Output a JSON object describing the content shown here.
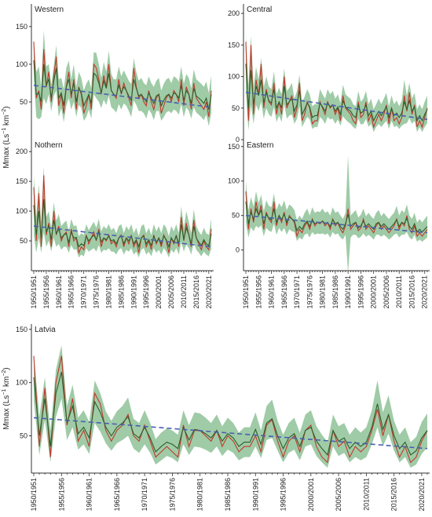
{
  "ylabel_prefix": "Mmax (Ls",
  "ylabel_exp1": "−1",
  "ylabel_mid": " km",
  "ylabel_exp2": "−2",
  "ylabel_suffix": ")",
  "colors": {
    "band": "#7fb98a",
    "line_red": "#c0392b",
    "line_green": "#2e5e2a",
    "trend": "#4a5fb0",
    "frame": "#333333"
  },
  "chart_data": [
    {
      "name": "Western",
      "type": "line",
      "years": [
        1951,
        2022
      ],
      "ylim": [
        0,
        180
      ],
      "yticks": [
        50,
        100,
        150
      ],
      "tick_labels": [
        "50",
        "100",
        "150"
      ],
      "observed": [
        130,
        55,
        65,
        40,
        120,
        70,
        90,
        50,
        85,
        110,
        45,
        60,
        35,
        70,
        90,
        55,
        80,
        40,
        70,
        60,
        35,
        45,
        60,
        40,
        100,
        95,
        80,
        60,
        85,
        70,
        100,
        65,
        60,
        55,
        80,
        60,
        75,
        65,
        55,
        45,
        95,
        70,
        55,
        60,
        50,
        45,
        65,
        50,
        40,
        55,
        60,
        35,
        45,
        55,
        60,
        50,
        65,
        60,
        50,
        80,
        45,
        70,
        60,
        40,
        75,
        55,
        50,
        45,
        40,
        50,
        30,
        65
      ],
      "modeled": [
        105,
        60,
        62,
        50,
        100,
        72,
        80,
        55,
        78,
        95,
        55,
        62,
        45,
        70,
        80,
        60,
        75,
        50,
        68,
        62,
        45,
        52,
        60,
        48,
        88,
        85,
        75,
        62,
        78,
        68,
        88,
        65,
        60,
        58,
        72,
        62,
        70,
        65,
        58,
        52,
        80,
        68,
        58,
        60,
        55,
        50,
        62,
        55,
        48,
        58,
        60,
        45,
        52,
        58,
        60,
        55,
        62,
        60,
        55,
        72,
        52,
        65,
        60,
        48,
        68,
        58,
        55,
        52,
        48,
        55,
        40,
        60
      ],
      "band_width": [
        25,
        30,
        35,
        20,
        45,
        25,
        20,
        18,
        20,
        30,
        25,
        20,
        22,
        25,
        25,
        20,
        25,
        20,
        22,
        20,
        20,
        22,
        20,
        20,
        28,
        30,
        25,
        20,
        25,
        22,
        30,
        22,
        20,
        22,
        25,
        22,
        22,
        20,
        20,
        22,
        28,
        22,
        20,
        22,
        20,
        22,
        22,
        20,
        22,
        20,
        22,
        20,
        22,
        22,
        22,
        20,
        22,
        22,
        22,
        25,
        22,
        22,
        22,
        20,
        25,
        22,
        22,
        22,
        22,
        22,
        22,
        25
      ],
      "trend": [
        72,
        43
      ]
    },
    {
      "name": "Central",
      "type": "line",
      "years": [
        1951,
        2022
      ],
      "ylim": [
        0,
        215
      ],
      "yticks": [
        0,
        50,
        100,
        150,
        200
      ],
      "tick_labels": [
        "0",
        "50",
        "100",
        "150",
        "200"
      ],
      "observed": [
        155,
        30,
        150,
        40,
        95,
        70,
        120,
        50,
        80,
        60,
        55,
        90,
        40,
        60,
        40,
        100,
        50,
        60,
        70,
        35,
        50,
        90,
        30,
        40,
        60,
        50,
        25,
        30,
        30,
        60,
        50,
        40,
        60,
        50,
        55,
        40,
        50,
        30,
        70,
        50,
        45,
        40,
        30,
        25,
        60,
        35,
        40,
        60,
        30,
        40,
        20,
        30,
        40,
        30,
        40,
        55,
        25,
        50,
        30,
        35,
        25,
        35,
        70,
        45,
        75,
        40,
        55,
        20,
        30,
        20,
        35,
        50
      ],
      "modeled": [
        120,
        50,
        110,
        55,
        85,
        70,
        95,
        58,
        75,
        62,
        58,
        80,
        50,
        60,
        50,
        85,
        55,
        60,
        65,
        45,
        55,
        78,
        40,
        48,
        58,
        52,
        35,
        38,
        38,
        58,
        52,
        45,
        58,
        52,
        55,
        45,
        52,
        40,
        62,
        52,
        48,
        45,
        38,
        35,
        55,
        42,
        45,
        55,
        38,
        45,
        30,
        38,
        45,
        38,
        45,
        52,
        35,
        50,
        38,
        42,
        35,
        42,
        60,
        48,
        62,
        45,
        52,
        30,
        38,
        30,
        40,
        48
      ],
      "band_width": [
        45,
        35,
        55,
        30,
        30,
        25,
        35,
        25,
        25,
        22,
        22,
        28,
        22,
        22,
        22,
        28,
        22,
        22,
        25,
        20,
        22,
        25,
        20,
        20,
        22,
        20,
        18,
        18,
        18,
        22,
        20,
        20,
        22,
        20,
        22,
        20,
        20,
        18,
        25,
        20,
        20,
        20,
        18,
        18,
        22,
        18,
        20,
        22,
        18,
        20,
        18,
        18,
        20,
        18,
        20,
        22,
        18,
        20,
        18,
        20,
        18,
        20,
        35,
        22,
        28,
        20,
        22,
        18,
        18,
        18,
        20,
        22
      ],
      "trend": [
        75,
        32
      ]
    },
    {
      "name": "Nothern",
      "type": "line",
      "years": [
        1951,
        2022
      ],
      "ylim": [
        0,
        220
      ],
      "yticks": [
        50,
        100,
        150,
        200
      ],
      "tick_labels": [
        "50",
        "100",
        "150",
        "200"
      ],
      "observed": [
        140,
        50,
        130,
        40,
        160,
        60,
        80,
        40,
        100,
        60,
        75,
        50,
        60,
        65,
        40,
        70,
        50,
        55,
        30,
        40,
        35,
        60,
        45,
        55,
        65,
        50,
        70,
        40,
        55,
        50,
        60,
        45,
        50,
        40,
        55,
        60,
        40,
        55,
        45,
        60,
        40,
        50,
        30,
        55,
        60,
        40,
        50,
        35,
        60,
        45,
        55,
        40,
        60,
        50,
        30,
        55,
        45,
        60,
        40,
        90,
        50,
        80,
        60,
        40,
        85,
        55,
        45,
        35,
        50,
        40,
        35,
        70
      ],
      "modeled": [
        110,
        60,
        100,
        55,
        120,
        65,
        75,
        52,
        85,
        62,
        70,
        55,
        60,
        62,
        48,
        65,
        55,
        56,
        40,
        45,
        42,
        58,
        50,
        55,
        60,
        52,
        65,
        48,
        55,
        52,
        58,
        50,
        52,
        45,
        55,
        58,
        45,
        55,
        50,
        58,
        45,
        52,
        40,
        55,
        58,
        45,
        52,
        42,
        58,
        48,
        55,
        45,
        58,
        52,
        40,
        55,
        48,
        58,
        45,
        78,
        52,
        72,
        60,
        45,
        75,
        55,
        48,
        42,
        52,
        45,
        42,
        62
      ],
      "band_width": [
        50,
        30,
        45,
        25,
        55,
        25,
        25,
        20,
        30,
        22,
        25,
        20,
        20,
        22,
        18,
        22,
        20,
        20,
        18,
        18,
        18,
        20,
        18,
        20,
        22,
        20,
        22,
        18,
        20,
        18,
        20,
        18,
        20,
        18,
        20,
        20,
        18,
        20,
        18,
        20,
        18,
        20,
        18,
        20,
        20,
        18,
        20,
        18,
        20,
        18,
        20,
        18,
        20,
        20,
        18,
        20,
        18,
        20,
        18,
        30,
        20,
        28,
        22,
        18,
        28,
        20,
        18,
        18,
        20,
        18,
        18,
        25
      ],
      "trend": [
        75,
        40
      ]
    },
    {
      "name": "Eastern",
      "type": "line",
      "years": [
        1951,
        2022
      ],
      "ylim": [
        -30,
        160
      ],
      "yticks": [
        0,
        50,
        100,
        150
      ],
      "tick_labels": [
        "0",
        "50",
        "100",
        "150"
      ],
      "observed": [
        85,
        30,
        60,
        40,
        70,
        50,
        65,
        30,
        55,
        45,
        40,
        70,
        35,
        50,
        40,
        55,
        35,
        50,
        45,
        40,
        20,
        30,
        25,
        35,
        40,
        30,
        45,
        35,
        40,
        38,
        42,
        35,
        40,
        30,
        45,
        35,
        40,
        30,
        25,
        35,
        60,
        30,
        35,
        40,
        28,
        32,
        45,
        30,
        35,
        30,
        25,
        35,
        40,
        30,
        35,
        30,
        25,
        30,
        35,
        45,
        30,
        40,
        35,
        50,
        30,
        25,
        35,
        20,
        25,
        20,
        25,
        30
      ],
      "modeled": [
        70,
        38,
        55,
        45,
        60,
        50,
        58,
        38,
        52,
        46,
        44,
        60,
        40,
        50,
        44,
        52,
        40,
        48,
        45,
        42,
        28,
        34,
        30,
        38,
        42,
        34,
        44,
        38,
        40,
        39,
        42,
        38,
        40,
        34,
        44,
        38,
        40,
        34,
        30,
        38,
        52,
        34,
        38,
        40,
        32,
        35,
        42,
        34,
        38,
        34,
        30,
        38,
        40,
        34,
        38,
        34,
        30,
        34,
        38,
        44,
        34,
        40,
        38,
        46,
        34,
        30,
        38,
        26,
        30,
        26,
        30,
        34
      ],
      "band_width": [
        30,
        20,
        22,
        18,
        25,
        18,
        22,
        18,
        20,
        18,
        18,
        22,
        18,
        18,
        18,
        20,
        18,
        18,
        18,
        16,
        15,
        16,
        15,
        16,
        18,
        16,
        18,
        16,
        16,
        16,
        18,
        16,
        16,
        16,
        18,
        16,
        16,
        16,
        15,
        16,
        85,
        16,
        16,
        18,
        15,
        16,
        18,
        15,
        16,
        15,
        15,
        16,
        18,
        15,
        16,
        15,
        15,
        16,
        16,
        20,
        16,
        18,
        16,
        20,
        16,
        15,
        16,
        14,
        15,
        14,
        15,
        16
      ],
      "trend": [
        50,
        25
      ]
    },
    {
      "name": "Latvia",
      "type": "line",
      "years": [
        1951,
        2022
      ],
      "ylim": [
        15,
        155
      ],
      "yticks": [
        50,
        100,
        150
      ],
      "tick_labels": [
        "50",
        "100",
        "150"
      ],
      "observed": [
        125,
        40,
        95,
        30,
        100,
        125,
        60,
        85,
        45,
        55,
        40,
        90,
        80,
        55,
        45,
        55,
        60,
        70,
        50,
        45,
        60,
        45,
        30,
        35,
        40,
        35,
        30,
        60,
        40,
        55,
        55,
        50,
        45,
        55,
        40,
        50,
        45,
        35,
        40,
        40,
        50,
        35,
        60,
        65,
        45,
        30,
        45,
        50,
        35,
        55,
        60,
        40,
        30,
        25,
        55,
        40,
        45,
        30,
        40,
        35,
        40,
        55,
        75,
        50,
        70,
        45,
        30,
        40,
        25,
        30,
        45,
        55
      ],
      "modeled": [
        105,
        50,
        85,
        40,
        90,
        110,
        62,
        78,
        52,
        58,
        48,
        82,
        72,
        58,
        50,
        58,
        62,
        68,
        52,
        48,
        58,
        48,
        35,
        40,
        44,
        42,
        38,
        58,
        46,
        56,
        55,
        52,
        48,
        55,
        45,
        52,
        48,
        40,
        44,
        44,
        56,
        42,
        62,
        66,
        50,
        38,
        48,
        52,
        40,
        55,
        58,
        45,
        38,
        32,
        55,
        45,
        48,
        38,
        44,
        40,
        44,
        58,
        80,
        56,
        70,
        50,
        38,
        44,
        32,
        36,
        48,
        55
      ],
      "band_width": [
        22,
        18,
        20,
        15,
        22,
        25,
        16,
        20,
        15,
        16,
        15,
        20,
        18,
        15,
        14,
        15,
        16,
        18,
        14,
        14,
        16,
        14,
        12,
        13,
        13,
        13,
        13,
        16,
        14,
        16,
        16,
        15,
        14,
        15,
        14,
        15,
        14,
        13,
        14,
        14,
        16,
        13,
        16,
        18,
        14,
        13,
        14,
        15,
        13,
        15,
        16,
        14,
        13,
        12,
        15,
        14,
        14,
        13,
        14,
        13,
        14,
        16,
        22,
        16,
        18,
        14,
        13,
        14,
        12,
        13,
        15,
        16
      ],
      "trend": [
        67,
        38
      ]
    }
  ],
  "x_tick_labels": [
    "1950/1951",
    "1955/1956",
    "1960/1961",
    "1965/1966",
    "1970/1971",
    "1975/1976",
    "1980/1981",
    "1985/1986",
    "1990/1991",
    "1995/1996",
    "2000/2001",
    "2005/2006",
    "2010/2011",
    "2015/2016",
    "2020/2021"
  ]
}
